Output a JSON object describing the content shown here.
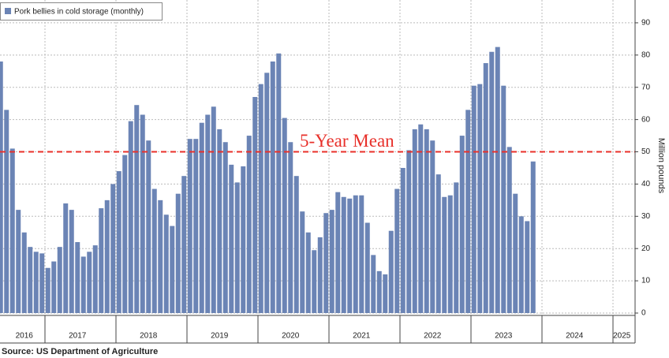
{
  "chart_data": {
    "type": "bar",
    "y_label": "Million pounds",
    "source": "Source: US Department of Agriculture",
    "categories": [
      null,
      null,
      null,
      null,
      null,
      null,
      null,
      null,
      "2016",
      null,
      null,
      null,
      null,
      null,
      null,
      null,
      null,
      "2017",
      null,
      null,
      null,
      null,
      null,
      null,
      null,
      null,
      null,
      null,
      null,
      "2018",
      null,
      null,
      null,
      null,
      null,
      null,
      null,
      null,
      null,
      null,
      null,
      "2019",
      null,
      null,
      null,
      null,
      null,
      null,
      null,
      null,
      null,
      null,
      null,
      "2020",
      null,
      null,
      null,
      null,
      null,
      null,
      null,
      null,
      null,
      null,
      null,
      "2021",
      null,
      null,
      null,
      null,
      null,
      null,
      null,
      null,
      null,
      null,
      null,
      "2022",
      null,
      null,
      null,
      null,
      null,
      null,
      null,
      null,
      null,
      null,
      null,
      "2023",
      null,
      null,
      null,
      null,
      null,
      null,
      null,
      null,
      null,
      null,
      null,
      "2024",
      null,
      null,
      null,
      null,
      null,
      null,
      null,
      "2025",
      null
    ],
    "series": [
      {
        "name": "Pork bellies in cold storage (monthly)",
        "color": "#6b84b5",
        "values": [
          null,
          null,
          null,
          null,
          78,
          63,
          51,
          32,
          25,
          20.5,
          19,
          18.5,
          14,
          16,
          20.5,
          34,
          32,
          22,
          17.5,
          19,
          21,
          32.5,
          35,
          40,
          44,
          49,
          59.5,
          64.5,
          61.5,
          53.5,
          38.5,
          35,
          30.5,
          27,
          37,
          42.5,
          54,
          54,
          59,
          61.5,
          64,
          57,
          53,
          46,
          40.5,
          45.5,
          55,
          67,
          71,
          74.5,
          78,
          80.5,
          60.5,
          53,
          42.5,
          31.5,
          25,
          19.5,
          23.5,
          31,
          32,
          37.5,
          36,
          35.5,
          36.5,
          36.5,
          28,
          18,
          13,
          12,
          25.5,
          38.5,
          45,
          50.5,
          57,
          58.5,
          57,
          53.5,
          43,
          36,
          36.5,
          40.5,
          55,
          63,
          70.5,
          71,
          77.5,
          81,
          82.5,
          70.5,
          51.5,
          37,
          30,
          28.5,
          47,
          null,
          null,
          null,
          null,
          null,
          null,
          null,
          null,
          null,
          null,
          null,
          null,
          null,
          null,
          null,
          null
        ]
      }
    ],
    "mean_line": {
      "value": 50,
      "label": "5-Year Mean",
      "color": "#e8302a"
    },
    "ylim": [
      0,
      97
    ],
    "yticks": [
      0,
      10,
      20,
      30,
      40,
      50,
      60,
      70,
      80,
      90
    ],
    "grid": true
  }
}
